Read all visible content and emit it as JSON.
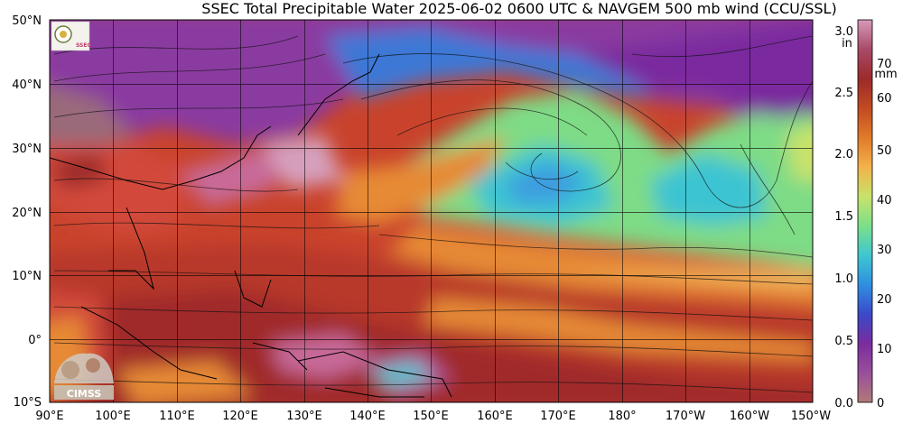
{
  "title": "SSEC Total Precipitable Water  2025-06-02 0600 UTC & NAVGEM 500 mb wind (CCU/SSL)",
  "logos": {
    "top_left": "SSEC logo",
    "bottom_left": "CIMSS"
  },
  "axes": {
    "lat_labels": [
      "50°N",
      "40°N",
      "30°N",
      "20°N",
      "10°N",
      "0°",
      "10°S"
    ],
    "lon_labels": [
      "90°E",
      "100°E",
      "110°E",
      "120°E",
      "130°E",
      "140°E",
      "150°E",
      "160°E",
      "170°E",
      "180°",
      "170°W",
      "160°W",
      "150°W"
    ]
  },
  "colorbar": {
    "left_unit": "in",
    "right_unit": "mm",
    "inch_ticks": [
      "3.0",
      "2.5",
      "2.0",
      "1.5",
      "1.0",
      "0.5",
      "0.0"
    ],
    "mm_ticks": [
      "70",
      "60",
      "50",
      "40",
      "30",
      "20",
      "10",
      "0"
    ],
    "colors": [
      "#b07a78",
      "#9a4f9b",
      "#7a2c9e",
      "#3b49c9",
      "#2f8fe0",
      "#3fc7d0",
      "#7be08a",
      "#c8e26a",
      "#f2b24a",
      "#e07a2a",
      "#c24a22",
      "#9b2a2a",
      "#a94a6a",
      "#d79ab8"
    ]
  },
  "colors": {
    "background": "#ffffff",
    "ocean_dry": "#8a3aa0",
    "moist_red": "#b8382a",
    "orange": "#e68a34",
    "green": "#7edb86",
    "cyan": "#3cc4d2",
    "blue": "#3c6fd6"
  }
}
